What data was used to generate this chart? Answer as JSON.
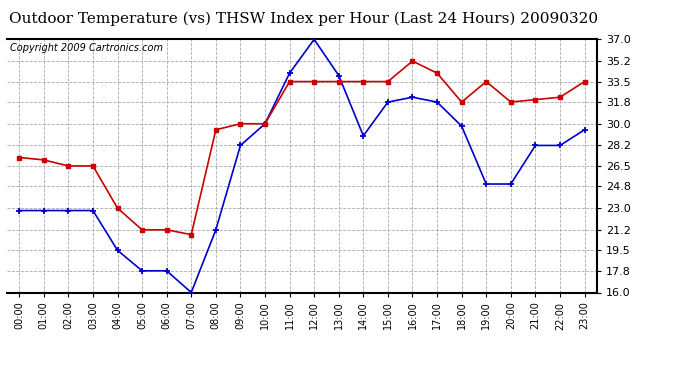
{
  "title": "Outdoor Temperature (vs) THSW Index per Hour (Last 24 Hours) 20090320",
  "copyright": "Copyright 2009 Cartronics.com",
  "hours": [
    "00:00",
    "01:00",
    "02:00",
    "03:00",
    "04:00",
    "05:00",
    "06:00",
    "07:00",
    "08:00",
    "09:00",
    "10:00",
    "11:00",
    "12:00",
    "13:00",
    "14:00",
    "15:00",
    "16:00",
    "17:00",
    "18:00",
    "19:00",
    "20:00",
    "21:00",
    "22:00",
    "23:00"
  ],
  "blue_data": [
    22.8,
    22.8,
    22.8,
    22.8,
    19.5,
    17.8,
    17.8,
    16.0,
    21.2,
    28.2,
    30.0,
    34.2,
    37.0,
    34.0,
    29.0,
    31.8,
    32.2,
    31.8,
    29.8,
    25.0,
    25.0,
    28.2,
    28.2,
    29.5
  ],
  "red_data": [
    27.2,
    27.0,
    26.5,
    26.5,
    23.0,
    21.2,
    21.2,
    20.8,
    29.5,
    30.0,
    30.0,
    33.5,
    33.5,
    33.5,
    33.5,
    33.5,
    35.2,
    34.2,
    31.8,
    33.5,
    31.8,
    32.0,
    32.2,
    33.5
  ],
  "blue_color": "#0000cc",
  "red_color": "#cc0000",
  "bg_color": "#ffffff",
  "grid_color": "#aaaaaa",
  "ylim": [
    16.0,
    37.0
  ],
  "yticks": [
    16.0,
    17.8,
    19.5,
    21.2,
    23.0,
    24.8,
    26.5,
    28.2,
    30.0,
    31.8,
    33.5,
    35.2,
    37.0
  ],
  "title_fontsize": 11,
  "copyright_fontsize": 7
}
